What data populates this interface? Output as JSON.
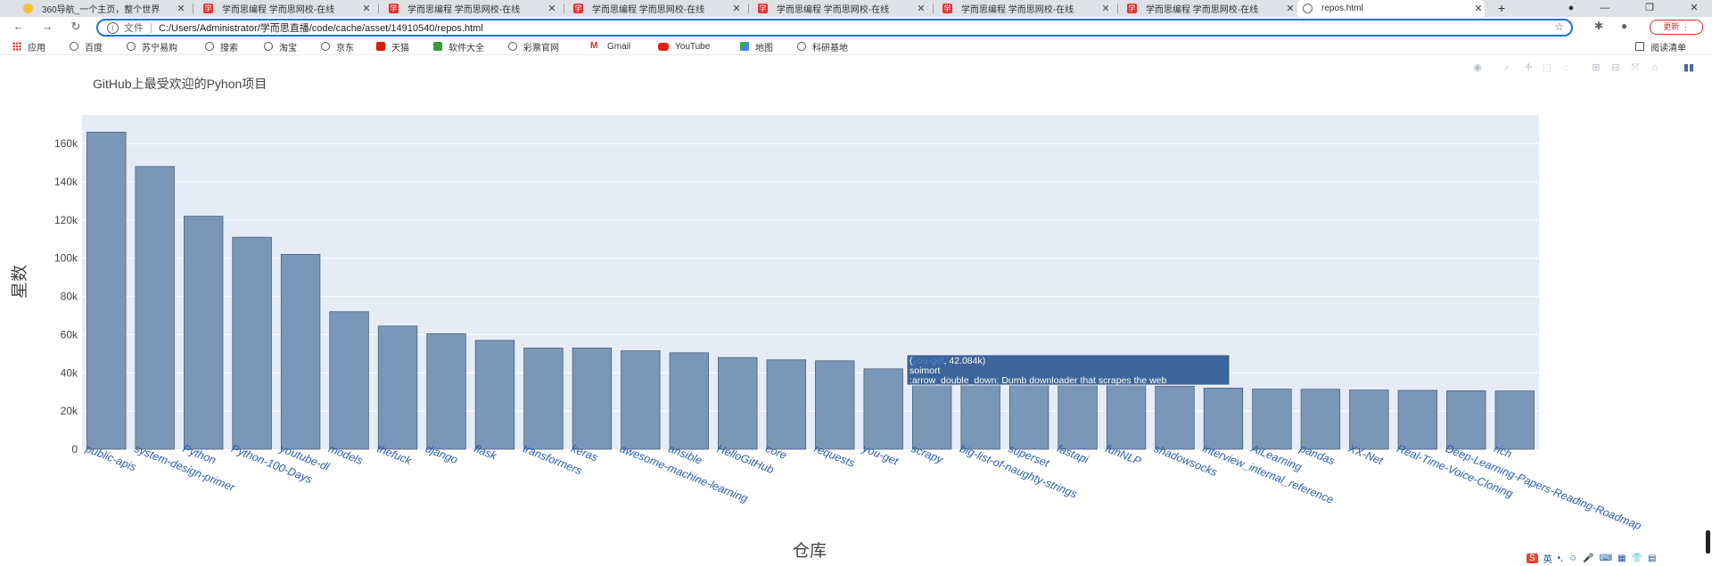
{
  "browser": {
    "tabs": [
      {
        "title": "360导航_一个主页，整个世界",
        "icon": "360-logo-icon"
      },
      {
        "title": "学而思编程 学而思网校-在线",
        "icon": "xueersi-logo-icon"
      },
      {
        "title": "学而思编程 学而思网校-在线",
        "icon": "xueersi-logo-icon"
      },
      {
        "title": "学而思编程 学而思网校-在线",
        "icon": "xueersi-logo-icon"
      },
      {
        "title": "学而思编程 学而思网校-在线",
        "icon": "xueersi-logo-icon"
      },
      {
        "title": "学而思编程 学而思网校-在线",
        "icon": "xueersi-logo-icon"
      },
      {
        "title": "学而思编程 学而思网校-在线",
        "icon": "xueersi-logo-icon"
      },
      {
        "title": "repos.html",
        "icon": "globe-icon",
        "active": true
      }
    ],
    "tab_glyph": "学",
    "new_tab": "+",
    "address": {
      "scheme_label": "文件",
      "url": "C:/Users/Administrator/学而思直播/code/cache/asset/14910540/repos.html"
    },
    "update_label": "更新",
    "reading_list": "阅读清单",
    "bookmarks": [
      {
        "label": "应用",
        "icon": "apps-grid-icon"
      },
      {
        "label": "百度",
        "icon": "globe-icon"
      },
      {
        "label": "苏宁易购",
        "icon": "globe-icon"
      },
      {
        "label": "搜索",
        "icon": "globe-icon"
      },
      {
        "label": "淘宝",
        "icon": "globe-icon"
      },
      {
        "label": "京东",
        "icon": "globe-icon"
      },
      {
        "label": "天猫",
        "icon": "tmall-icon"
      },
      {
        "label": "软件大全",
        "icon": "download-icon"
      },
      {
        "label": "彩票官网",
        "icon": "globe-icon"
      },
      {
        "label": "Gmail",
        "icon": "gmail-icon"
      },
      {
        "label": "YouTube",
        "icon": "youtube-icon"
      },
      {
        "label": "地图",
        "icon": "maps-icon"
      },
      {
        "label": "科研基地",
        "icon": "globe-icon"
      }
    ]
  },
  "tooltip": {
    "x": "you-get",
    "y": "42.084k",
    "owner": "soimort",
    "description": ":arrow_double_down: Dumb downloader that scrapes the web",
    "bg_color": "#3d6599",
    "highlight_color": "#4a86d8"
  },
  "tray": {
    "ime": "英"
  },
  "chart_data": {
    "type": "bar",
    "title": "GitHub上最受欢迎的Pyhon项目",
    "xlabel": "仓库",
    "ylabel": "星数",
    "ylim": [
      0,
      175000
    ],
    "y_ticks": [
      0,
      20000,
      40000,
      60000,
      80000,
      100000,
      120000,
      140000,
      160000
    ],
    "y_tick_labels": [
      "0",
      "20k",
      "40k",
      "60k",
      "80k",
      "100k",
      "120k",
      "140k",
      "160k"
    ],
    "grid": true,
    "bar_color": "#7a97b8",
    "bar_edge_color": "#4c607a",
    "plot_bg": "#e5ecf6",
    "tick_label_color": "#2a5db0",
    "categories": [
      "public-apis",
      "system-design-primer",
      "Python",
      "Python-100-Days",
      "youtube-dl",
      "models",
      "thefuck",
      "django",
      "flask",
      "transformers",
      "keras",
      "awesome-machine-learning",
      "ansible",
      "HelloGitHub",
      "core",
      "requests",
      "you-get",
      "scrapy",
      "big-list-of-naughty-strings",
      "superset",
      "fastapi",
      "funNLP",
      "shadowsocks",
      "interview_internal_reference",
      "AiLearning",
      "pandas",
      "XX-Net",
      "Real-Time-Voice-Cloning",
      "Deep-Learning-Papers-Reading-Roadmap",
      "rich"
    ],
    "values": [
      166000,
      148000,
      122000,
      111000,
      102000,
      72000,
      64500,
      60500,
      57000,
      53000,
      53000,
      51500,
      50500,
      48000,
      46800,
      46300,
      42084,
      40500,
      39000,
      37500,
      36000,
      34500,
      33000,
      32000,
      31500,
      31400,
      31000,
      30800,
      30600,
      30500
    ]
  }
}
